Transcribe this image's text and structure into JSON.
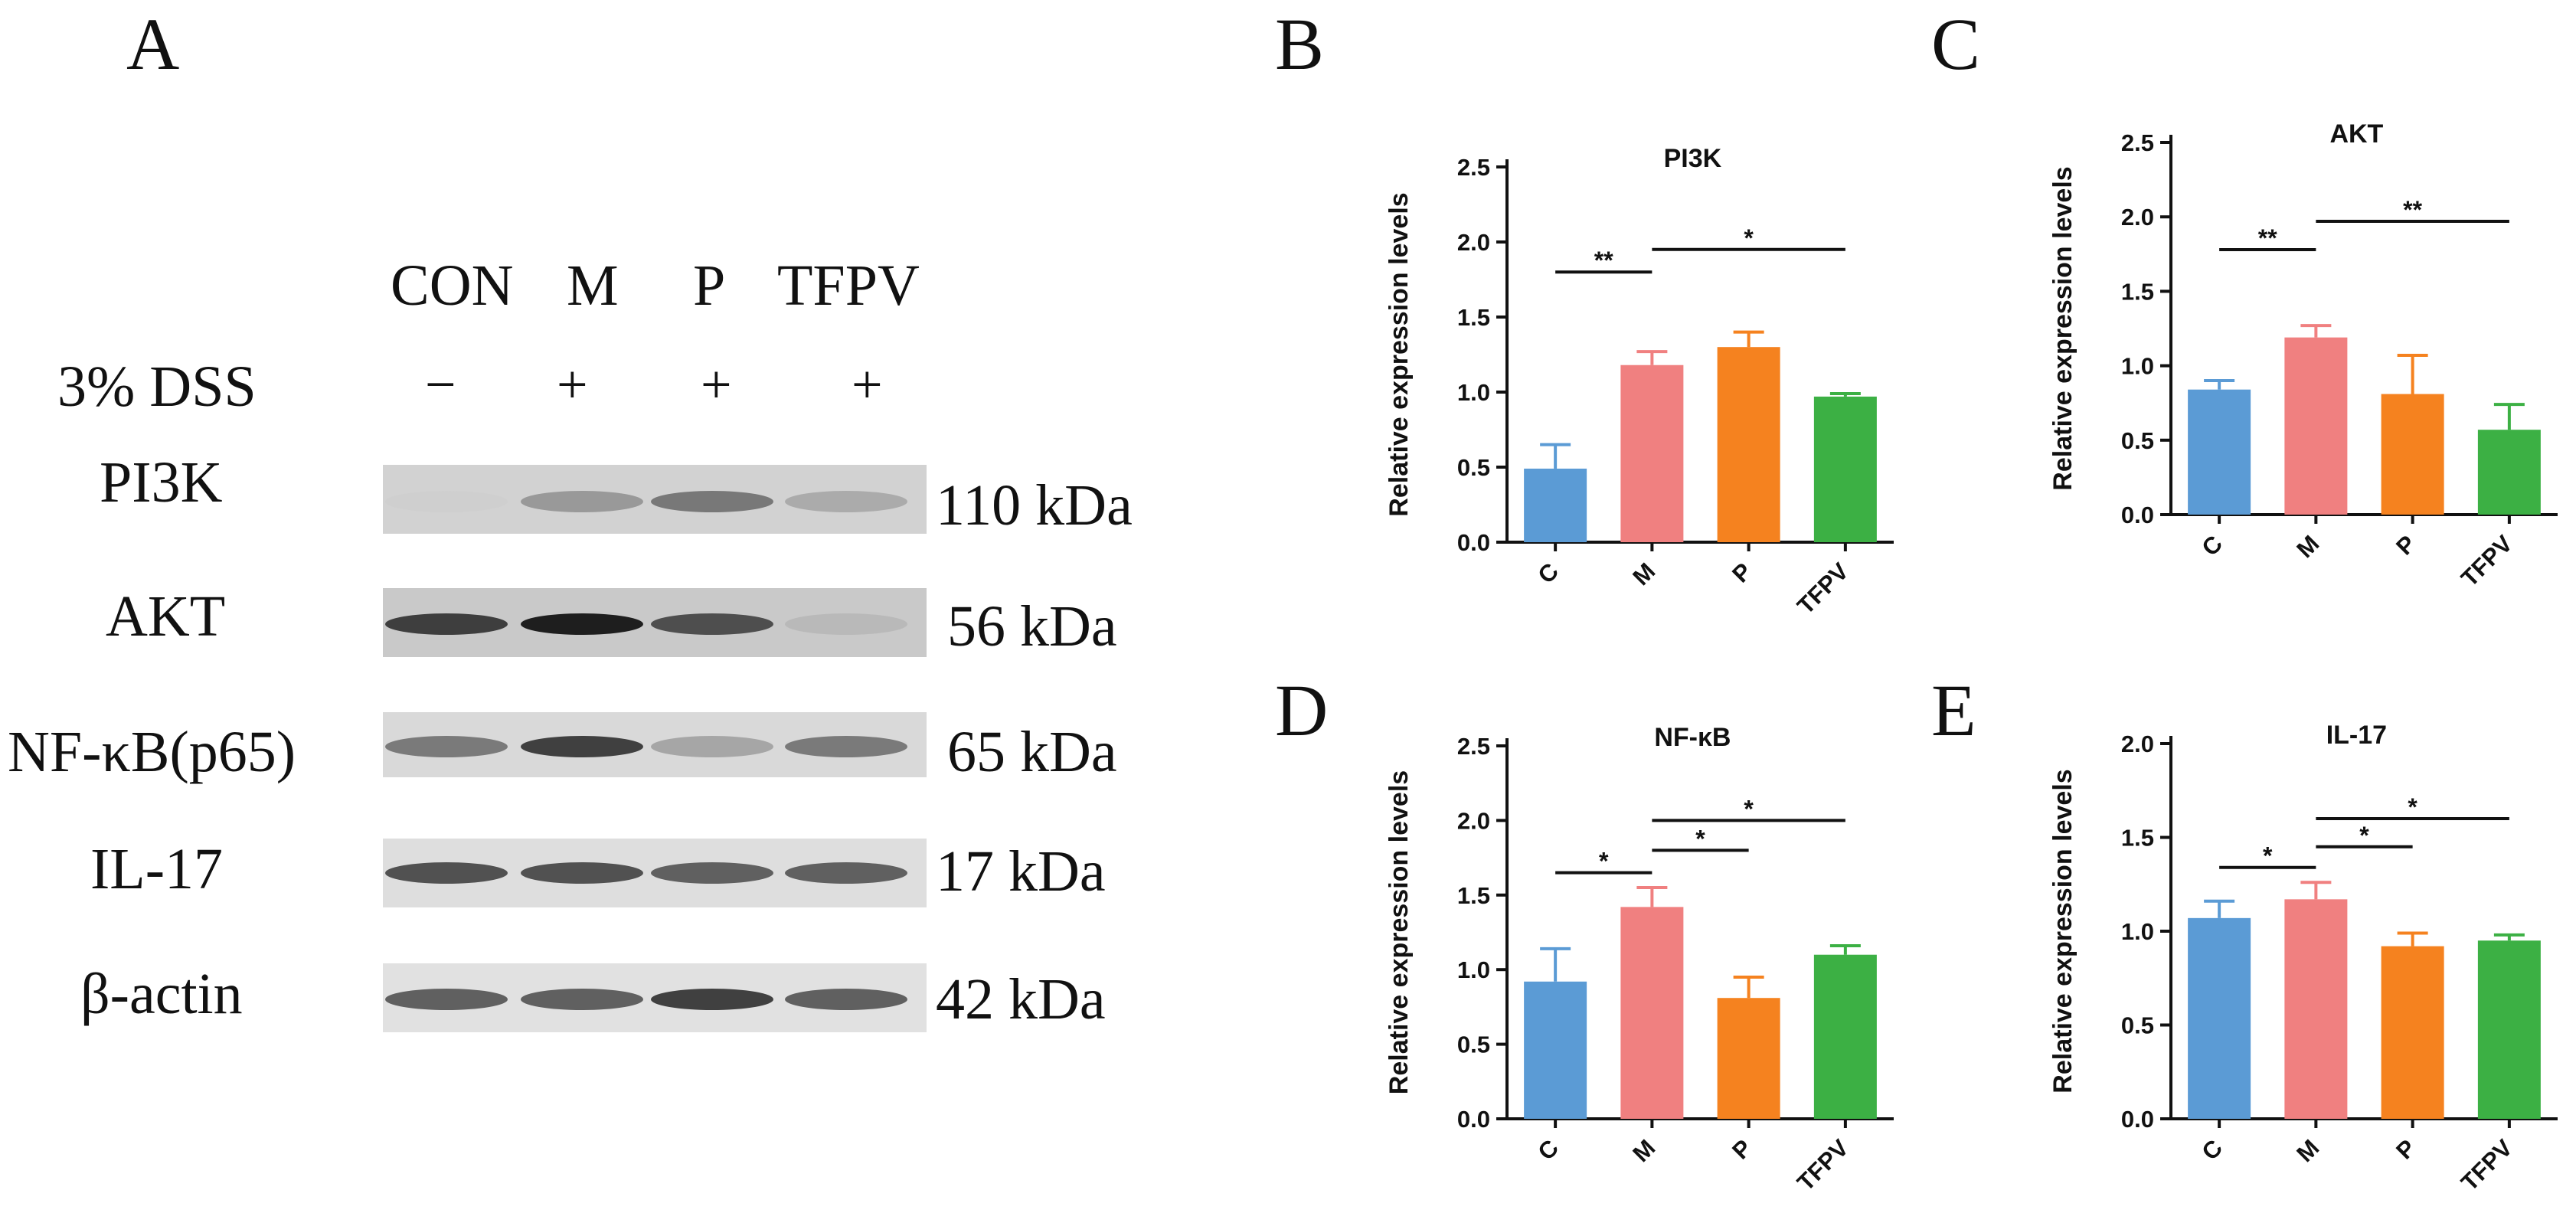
{
  "figure": {
    "panel_letters": [
      "A",
      "B",
      "C",
      "D",
      "E"
    ]
  },
  "blot": {
    "lane_headers": [
      "CON",
      "M",
      "P",
      "TFPV"
    ],
    "treatment_label": "3% DSS",
    "treatment_signs": [
      "−",
      "+",
      "+",
      "+"
    ],
    "rows": [
      {
        "protein": "PI3K",
        "kda": "110 kDa",
        "intensities": [
          0.05,
          0.55,
          0.7,
          0.45
        ],
        "background": "#d2d2d2"
      },
      {
        "protein": "AKT",
        "kda": "56 kDa",
        "intensities": [
          0.9,
          1.0,
          0.85,
          0.3
        ],
        "background": "#c9c9c9"
      },
      {
        "protein": "NF-κB(p65)",
        "kda": "65 kDa",
        "intensities": [
          0.7,
          0.9,
          0.5,
          0.7
        ],
        "background": "#d9d9d9"
      },
      {
        "protein": "IL-17",
        "kda": "17 kDa",
        "intensities": [
          0.85,
          0.85,
          0.8,
          0.8
        ],
        "background": "#dedede"
      },
      {
        "protein": "β-actin",
        "kda": "42 kDa",
        "intensities": [
          0.8,
          0.8,
          0.9,
          0.8
        ],
        "background": "#e1e1e1"
      }
    ]
  },
  "chart_data": [
    {
      "panel": "B",
      "type": "bar",
      "title": "PI3K",
      "ylabel": "Relative expression levels",
      "categories": [
        "C",
        "M",
        "P",
        "TFPV"
      ],
      "values": [
        0.49,
        1.18,
        1.3,
        0.97
      ],
      "errors": [
        0.16,
        0.09,
        0.1,
        0.02
      ],
      "ylim": [
        0,
        2.5
      ],
      "yticks": [
        "0.0",
        "0.5",
        "1.0",
        "1.5",
        "2.0",
        "2.5"
      ],
      "colors": [
        "#5b9bd5",
        "#f08080",
        "#f5821f",
        "#3cb044"
      ],
      "significance": [
        {
          "from": 0,
          "to": 1,
          "y": 1.8,
          "label": "**"
        },
        {
          "from": 1,
          "to": 3,
          "y": 1.95,
          "label": "*"
        }
      ]
    },
    {
      "panel": "C",
      "type": "bar",
      "title": "AKT",
      "ylabel": "Relative expression levels",
      "categories": [
        "C",
        "M",
        "P",
        "TFPV"
      ],
      "values": [
        0.84,
        1.19,
        0.81,
        0.57
      ],
      "errors": [
        0.06,
        0.08,
        0.26,
        0.17
      ],
      "ylim": [
        0,
        2.5
      ],
      "yticks": [
        "0.0",
        "0.5",
        "1.0",
        "1.5",
        "2.0",
        "2.5"
      ],
      "colors": [
        "#5b9bd5",
        "#f08080",
        "#f5821f",
        "#3cb044"
      ],
      "significance": [
        {
          "from": 0,
          "to": 1,
          "y": 1.78,
          "label": "**"
        },
        {
          "from": 1,
          "to": 3,
          "y": 1.97,
          "label": "**"
        }
      ]
    },
    {
      "panel": "D",
      "type": "bar",
      "title": "NF-κB",
      "ylabel": "Relative expression levels",
      "categories": [
        "C",
        "M",
        "P",
        "TFPV"
      ],
      "values": [
        0.92,
        1.42,
        0.81,
        1.1
      ],
      "errors": [
        0.22,
        0.13,
        0.14,
        0.06
      ],
      "ylim": [
        0,
        2.5
      ],
      "yticks": [
        "0.0",
        "0.5",
        "1.0",
        "1.5",
        "2.0",
        "2.5"
      ],
      "colors": [
        "#5b9bd5",
        "#f08080",
        "#f5821f",
        "#3cb044"
      ],
      "significance": [
        {
          "from": 0,
          "to": 1,
          "y": 1.65,
          "label": "*"
        },
        {
          "from": 1,
          "to": 2,
          "y": 1.8,
          "label": "*"
        },
        {
          "from": 1,
          "to": 3,
          "y": 2.0,
          "label": "*"
        }
      ]
    },
    {
      "panel": "E",
      "type": "bar",
      "title": "IL-17",
      "ylabel": "Relative expression levels",
      "categories": [
        "C",
        "M",
        "P",
        "TFPV"
      ],
      "values": [
        1.07,
        1.17,
        0.92,
        0.95
      ],
      "errors": [
        0.09,
        0.09,
        0.07,
        0.03
      ],
      "ylim": [
        0,
        2.0
      ],
      "yticks": [
        "0.0",
        "0.5",
        "1.0",
        "1.5",
        "2.0"
      ],
      "colors": [
        "#5b9bd5",
        "#f08080",
        "#f5821f",
        "#3cb044"
      ],
      "significance": [
        {
          "from": 0,
          "to": 1,
          "y": 1.34,
          "label": "*"
        },
        {
          "from": 1,
          "to": 2,
          "y": 1.45,
          "label": "*"
        },
        {
          "from": 1,
          "to": 3,
          "y": 1.6,
          "label": "*"
        }
      ]
    }
  ]
}
